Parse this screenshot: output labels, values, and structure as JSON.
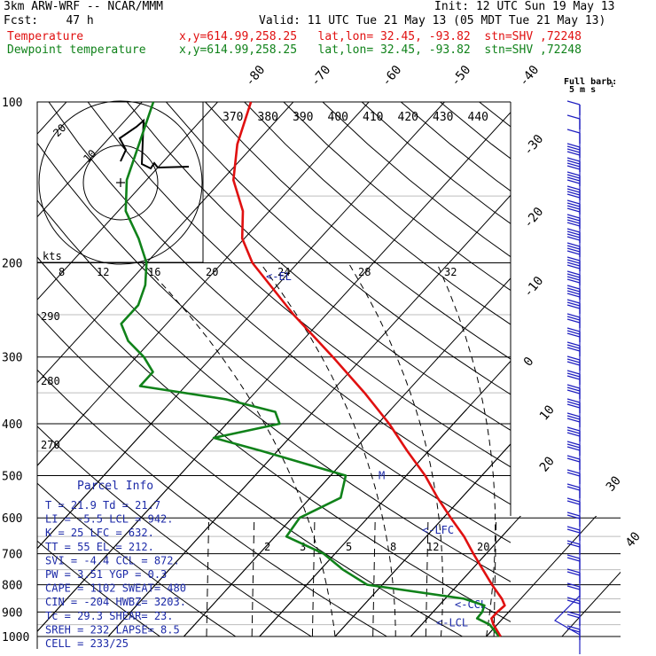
{
  "header": {
    "model": "3km ARW-WRF -- NCAR/MMM",
    "init": "Init: 12 UTC Sun 19 May 13",
    "fcst": "Fcst:    47 h",
    "valid": "Valid: 11 UTC Tue 21 May 13 (05 MDT Tue 21 May 13)",
    "temp_label": "Temperature",
    "temp_info": "x,y=614.99,258.25   lat,lon= 32.45, -93.82  stn=SHV ,72248",
    "dew_label": "Dewpoint temperature",
    "dew_info": "x,y=614.99,258.25   lat,lon= 32.45, -93.82  stn=SHV ,72248"
  },
  "legend": {
    "barb_title": "Full barb:",
    "barb_units": "5 m s"
  },
  "colors": {
    "temperature": "#e01010",
    "dewpoint": "#10821a",
    "wind_barbs": "#2020c0",
    "lines": "#000000"
  },
  "chart_data": {
    "type": "skew-t log-p",
    "pressure_levels": [
      100,
      200,
      300,
      400,
      500,
      600,
      700,
      800,
      900,
      1000
    ],
    "pressure_range": [
      1000,
      100
    ],
    "isotherm_labels": [
      "-80",
      "-70",
      "-60",
      "-50",
      "-40",
      "-30",
      "-20",
      "-10",
      "0",
      "10",
      "20",
      "30",
      "40"
    ],
    "theta_labels": [
      "370",
      "380",
      "390",
      "400",
      "410",
      "420",
      "430",
      "440"
    ],
    "mixing_ratio_labels": [
      "2",
      "3",
      "5",
      "8",
      "12",
      "20"
    ],
    "dry_adiabat_labels": [
      "290",
      "280",
      "270"
    ],
    "hodograph": {
      "units": "kts",
      "ring_labels": [
        "10",
        "20"
      ],
      "speed_ticks": [
        "8",
        "12",
        "16",
        "20",
        "24",
        "28",
        "32"
      ]
    },
    "temperature": {
      "name": "Temperature",
      "p": [
        1000,
        950,
        925,
        900,
        875,
        850,
        800,
        750,
        700,
        650,
        600,
        550,
        500,
        450,
        400,
        350,
        300,
        250,
        220,
        200,
        180,
        160,
        140,
        120,
        100
      ],
      "t": [
        21.9,
        19.5,
        18.5,
        18.5,
        18.7,
        17.5,
        14.5,
        11.5,
        8.3,
        5,
        1,
        -3.2,
        -7.5,
        -12.8,
        -18.5,
        -25.5,
        -34,
        -44.3,
        -51,
        -56,
        -60.3,
        -63.5,
        -68.5,
        -72.3,
        -75.6
      ]
    },
    "dewpoint": {
      "name": "Dewpoint temperature",
      "p": [
        1000,
        950,
        925,
        900,
        875,
        850,
        800,
        750,
        700,
        650,
        600,
        550,
        500,
        450,
        425,
        400,
        380,
        360,
        340,
        320,
        300,
        280,
        260,
        240,
        220,
        200,
        180,
        160,
        140,
        120,
        100
      ],
      "td": [
        21.7,
        19,
        16.6,
        16.5,
        16,
        12.5,
        -2,
        -7,
        -11.5,
        -18.5,
        -19,
        -16,
        -18,
        -32,
        -40,
        -33,
        -35,
        -43,
        -56,
        -56,
        -59,
        -63,
        -66,
        -66,
        -67.5,
        -70,
        -74,
        -79,
        -82.6,
        -85.3,
        -88.5
      ]
    },
    "levels_marked": [
      {
        "label": "EL",
        "p": 212
      },
      {
        "label": "LFC",
        "p": 632
      },
      {
        "label": "CCL",
        "p": 872
      },
      {
        "label": "LCL",
        "p": 942
      },
      {
        "label": "M",
        "p": 500
      }
    ]
  },
  "parcel": {
    "title": "Parcel Info",
    "rows": [
      "T  =   21.9  Td =  21.7",
      "LI =   -5.5  LCL =  942.",
      "K  =     25  LFC =  632.",
      "TT =     55  EL  =  212.",
      "SVI =  -4.4  CCL =  872.",
      "PW =   3.51  YGP =   0.3",
      "CAPE =  1102  SWEAT=  480",
      "CIN =   -204  HWBZ= 3203.",
      "Tc  =  29.3  SHEAR=  23.",
      "SREH =   232  LAPSE=  8.5",
      "CELL = 233/25"
    ]
  }
}
